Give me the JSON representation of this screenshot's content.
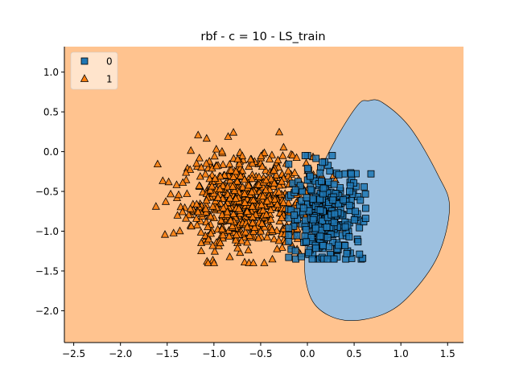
{
  "chart_data": {
    "type": "scatter",
    "title": "rbf - c = 10 - LS_train",
    "xlabel": "",
    "ylabel": "",
    "xlim": [
      -2.6,
      1.67
    ],
    "ylim": [
      -2.4,
      1.32
    ],
    "x_ticks": [
      -2.5,
      -2.0,
      -1.5,
      -1.0,
      -0.5,
      0.0,
      0.5,
      1.0,
      1.5
    ],
    "x_tick_labels": [
      "−2.5",
      "−2.0",
      "−1.5",
      "−1.0",
      "−0.5",
      "0.0",
      "0.5",
      "1.0",
      "1.5"
    ],
    "y_ticks": [
      1.0,
      0.5,
      0.0,
      -0.5,
      -1.0,
      -1.5,
      -2.0
    ],
    "y_tick_labels": [
      "1.0",
      "0.5",
      "0.0",
      "−0.5",
      "−1.0",
      "−1.5",
      "−2.0"
    ],
    "grid": false,
    "legend": {
      "position": "top-left",
      "entries": [
        {
          "label": "0",
          "marker": "square",
          "color": "#1f77b4"
        },
        {
          "label": "1",
          "marker": "triangle",
          "color": "#ff7f0e"
        }
      ]
    },
    "decision_regions": {
      "background_class": "1",
      "background_color": "#ffc38f",
      "region_color": "#9bbfdf",
      "region_class": "0",
      "region_boundary": [
        [
          -0.02,
          -1.1
        ],
        [
          0.02,
          -0.6
        ],
        [
          0.15,
          -0.2
        ],
        [
          0.35,
          0.25
        ],
        [
          0.55,
          0.6
        ],
        [
          0.65,
          0.64
        ],
        [
          0.8,
          0.62
        ],
        [
          1.1,
          0.3
        ],
        [
          1.4,
          -0.3
        ],
        [
          1.52,
          -0.7
        ],
        [
          1.4,
          -1.3
        ],
        [
          1.1,
          -1.8
        ],
        [
          0.8,
          -2.05
        ],
        [
          0.4,
          -2.12
        ],
        [
          0.1,
          -1.95
        ],
        [
          -0.02,
          -1.6
        ]
      ]
    },
    "series": [
      {
        "name": "0",
        "marker": "square",
        "color": "#1f77b4",
        "center": [
          0.2,
          -0.8
        ],
        "spread": [
          0.2,
          0.3
        ],
        "x_range": [
          -0.2,
          0.68
        ],
        "y_range": [
          -1.35,
          -0.05
        ],
        "count": 350
      },
      {
        "name": "1",
        "marker": "triangle",
        "color": "#ff7f0e",
        "center": [
          -0.65,
          -0.65
        ],
        "spread": [
          0.35,
          0.3
        ],
        "x_range": [
          -1.62,
          0.3
        ],
        "y_range": [
          -1.4,
          0.35
        ],
        "count": 650
      }
    ]
  }
}
